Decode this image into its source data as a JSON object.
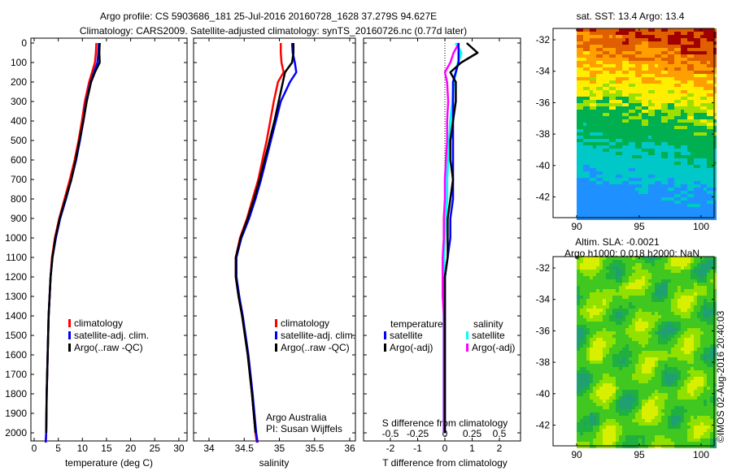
{
  "title": {
    "line1": "Argo profile: CS 5903686_181 25-Jul-2016 20160728_1628 37.279S 94.627E",
    "line2": "Climatology: CARS2009. Satellite-adjusted climatology: synTS_20160726.nc (0.77d later)"
  },
  "credits": {
    "org": "Argo Australia",
    "pi": "PI: Susan Wijffels",
    "stamp": "©IMOS 02-Aug-2016 20:40:03"
  },
  "colors": {
    "climatology": "#ff0000",
    "satellite": "#0000ff",
    "argo": "#000000",
    "sal_satellite": "#00ffff",
    "sal_argo": "#ff00ff"
  },
  "chart_data": [
    {
      "type": "line",
      "id": "temperature",
      "xlabel": "temperature (deg C)",
      "ylabel": "",
      "xlim": [
        -1,
        31
      ],
      "ylim": [
        2050,
        0
      ],
      "xticks": [
        "0",
        "5",
        "10",
        "15",
        "20",
        "25",
        "30"
      ],
      "yticks": [
        "0",
        "100",
        "200",
        "300",
        "400",
        "500",
        "600",
        "700",
        "800",
        "900",
        "1000",
        "1100",
        "1200",
        "1300",
        "1400",
        "1500",
        "1600",
        "1700",
        "1800",
        "1900",
        "2000"
      ],
      "legend": [
        "climatology",
        "satellite-adj. clim.",
        "Argo(..raw -QC)"
      ],
      "depth": [
        0,
        50,
        100,
        150,
        200,
        300,
        400,
        500,
        600,
        700,
        800,
        900,
        1000,
        1100,
        1200,
        1300,
        1400,
        1600,
        1800,
        2000,
        2050
      ],
      "series": [
        {
          "name": "climatology",
          "values": [
            12.9,
            12.8,
            12.6,
            12.0,
            11.4,
            10.5,
            9.9,
            9.2,
            8.4,
            7.4,
            6.3,
            5.2,
            4.3,
            3.7,
            3.4,
            3.2,
            3.0,
            2.8,
            2.6,
            2.5,
            2.4
          ]
        },
        {
          "name": "satellite-adj. clim.",
          "values": [
            13.4,
            13.3,
            13.1,
            12.4,
            11.7,
            10.8,
            10.2,
            9.5,
            8.7,
            7.7,
            6.6,
            5.4,
            4.5,
            3.8,
            3.4,
            3.2,
            3.0,
            2.8,
            2.6,
            2.5,
            2.4
          ]
        },
        {
          "name": "Argo(..raw -QC)",
          "values": [
            13.6,
            13.5,
            13.6,
            12.6,
            11.8,
            10.9,
            10.2,
            9.4,
            8.6,
            7.7,
            6.5,
            5.3,
            4.4,
            3.8,
            3.4,
            3.2,
            3.0,
            2.8,
            2.6,
            2.5,
            null
          ]
        }
      ]
    },
    {
      "type": "line",
      "id": "salinity",
      "xlabel": "salinity",
      "xlim": [
        33.8,
        36.05
      ],
      "ylim": [
        2050,
        0
      ],
      "xticks": [
        "34",
        "34.5",
        "35",
        "35.5",
        "36"
      ],
      "legend": [
        "climatology",
        "satellite-adj. clim.",
        "Argo(..raw -QC)"
      ],
      "depth": [
        0,
        50,
        100,
        150,
        200,
        300,
        400,
        500,
        600,
        700,
        800,
        900,
        1000,
        1100,
        1200,
        1300,
        1400,
        1600,
        1800,
        2000,
        2050
      ],
      "series": [
        {
          "name": "climatology",
          "values": [
            35.02,
            35.02,
            35.03,
            35.06,
            34.98,
            34.92,
            34.87,
            34.82,
            34.76,
            34.7,
            34.62,
            34.54,
            34.44,
            34.38,
            34.38,
            34.42,
            34.47,
            34.55,
            34.61,
            34.66,
            34.68
          ]
        },
        {
          "name": "satellite-adj. clim.",
          "values": [
            35.18,
            35.19,
            35.22,
            35.24,
            35.15,
            35.02,
            34.95,
            34.88,
            34.81,
            34.74,
            34.66,
            34.57,
            34.46,
            34.39,
            34.39,
            34.43,
            34.48,
            34.56,
            34.62,
            34.67,
            34.69
          ]
        },
        {
          "name": "Argo(..raw -QC)",
          "values": [
            35.2,
            35.2,
            35.18,
            35.08,
            35.05,
            34.99,
            34.93,
            34.86,
            34.79,
            34.72,
            34.64,
            34.55,
            34.45,
            34.38,
            34.38,
            34.42,
            34.47,
            34.55,
            34.61,
            34.66,
            null
          ]
        }
      ]
    },
    {
      "type": "line",
      "id": "difference",
      "xlabel": "T difference from climatology",
      "xlabel2": "S difference from climatology",
      "xlim": [
        -3,
        3
      ],
      "ylim": [
        2050,
        0
      ],
      "xticks": [
        "-2",
        "-1",
        "0",
        "1",
        "2"
      ],
      "xticks2": [
        "-0.5",
        "-0.25",
        "0",
        "0.25",
        "0.5"
      ],
      "legend_titles": [
        "temperature",
        "salinity"
      ],
      "legend": [
        "satellite",
        "Argo(-adj)",
        "satellite",
        "Argo(-adj)"
      ],
      "depth": [
        0,
        50,
        100,
        150,
        200,
        300,
        400,
        500,
        600,
        700,
        800,
        900,
        1000,
        1100,
        1200,
        1300,
        1400,
        1600,
        1800,
        2000
      ],
      "series": [
        {
          "name": "T satellite",
          "values": [
            0.5,
            0.5,
            0.5,
            0.4,
            0.3,
            0.3,
            0.3,
            0.3,
            0.3,
            0.3,
            0.3,
            0.2,
            0.2,
            0.1,
            0.0,
            0.0,
            0.0,
            0.0,
            0.0,
            0.0
          ]
        },
        {
          "name": "T Argo(-adj)",
          "values": [
            0.8,
            1.2,
            0.6,
            0.2,
            0.4,
            0.4,
            0.3,
            0.2,
            0.2,
            0.3,
            0.2,
            0.1,
            0.1,
            0.1,
            0.0,
            0.0,
            0.0,
            0.0,
            0.0,
            0.0
          ]
        },
        {
          "name": "S satellite",
          "values": [
            0.1,
            0.15,
            0.12,
            0.1,
            0.08,
            0.07,
            0.05,
            0.04,
            0.03,
            0.02,
            0.02,
            0.01,
            0.0,
            -0.01,
            -0.01,
            -0.01,
            -0.01,
            -0.01,
            -0.01,
            -0.01
          ]
        },
        {
          "name": "S Argo(-adj)",
          "values": [
            0.13,
            0.08,
            0.05,
            0.0,
            0.02,
            0.03,
            0.02,
            0.02,
            0.01,
            0.0,
            0.0,
            -0.01,
            -0.01,
            -0.02,
            -0.02,
            -0.02,
            -0.01,
            -0.01,
            -0.01,
            -0.01
          ]
        }
      ]
    },
    {
      "type": "heatmap",
      "id": "sst-map",
      "title": "sat. SST: 13.4  Argo: 13.4",
      "xticks": [
        "90",
        "95",
        "100"
      ],
      "yticks": [
        "-32",
        "-34",
        "-36",
        "-38",
        "-40",
        "-42"
      ]
    },
    {
      "type": "heatmap",
      "id": "sla-map",
      "title1": "Altim. SLA: -0.0021",
      "title2": "Argo h1000: 0.018 h2000: NaN",
      "xticks": [
        "90",
        "95",
        "100"
      ],
      "yticks": [
        "-32",
        "-34",
        "-36",
        "-38",
        "-40",
        "-42"
      ]
    }
  ]
}
